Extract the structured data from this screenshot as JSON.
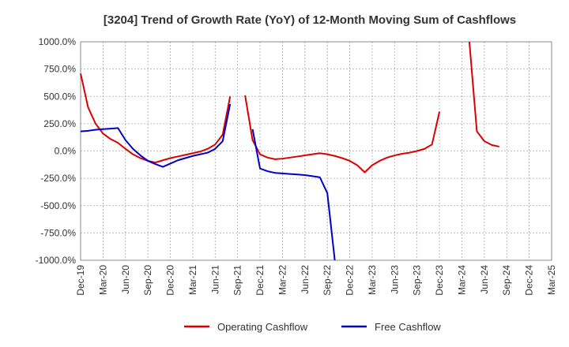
{
  "chart_data": {
    "type": "line",
    "title": "[3204]  Trend of Growth Rate (YoY) of 12-Month Moving Sum of Cashflows",
    "xlabel": "",
    "ylabel": "",
    "x_labels": [
      "Dec-19",
      "Mar-20",
      "Jun-20",
      "Sep-20",
      "Dec-20",
      "Mar-21",
      "Jun-21",
      "Sep-21",
      "Dec-21",
      "Mar-22",
      "Jun-22",
      "Sep-22",
      "Dec-22",
      "Mar-23",
      "Jun-23",
      "Sep-23",
      "Dec-23",
      "Mar-24",
      "Jun-24",
      "Sep-24",
      "Dec-24",
      "Mar-25"
    ],
    "y_ticks": [
      "1000.0%",
      "750.0%",
      "500.0%",
      "250.0%",
      "0.0%",
      "-250.0%",
      "-500.0%",
      "-750.0%",
      "-1000.0%"
    ],
    "ylim": [
      -1000,
      1000
    ],
    "grid": true,
    "legend_position": "bottom",
    "colors": {
      "operating": "#dd0000",
      "free": "#0000cc"
    },
    "series": [
      {
        "name": "Operating Cashflow",
        "color": "#dd0000",
        "segments": [
          [
            [
              0,
              710
            ],
            [
              1,
              400
            ],
            [
              2,
              250
            ],
            [
              3,
              160
            ],
            [
              4,
              110
            ],
            [
              5,
              75
            ],
            [
              6,
              20
            ],
            [
              7,
              -30
            ],
            [
              8,
              -65
            ],
            [
              9,
              -90
            ],
            [
              10,
              -105
            ],
            [
              11,
              -85
            ],
            [
              12,
              -65
            ],
            [
              13,
              -50
            ],
            [
              14,
              -35
            ],
            [
              15,
              -20
            ],
            [
              16,
              -5
            ],
            [
              17,
              20
            ],
            [
              18,
              60
            ],
            [
              19,
              150
            ],
            [
              20,
              500
            ]
          ],
          [
            [
              22,
              510
            ],
            [
              23,
              100
            ],
            [
              24,
              -30
            ],
            [
              25,
              -60
            ],
            [
              26,
              -75
            ],
            [
              27,
              -70
            ],
            [
              28,
              -60
            ],
            [
              29,
              -50
            ],
            [
              30,
              -40
            ],
            [
              31,
              -30
            ],
            [
              32,
              -20
            ],
            [
              33,
              -30
            ],
            [
              34,
              -45
            ],
            [
              35,
              -65
            ],
            [
              36,
              -90
            ],
            [
              37,
              -130
            ],
            [
              38,
              -195
            ],
            [
              39,
              -130
            ],
            [
              40,
              -90
            ],
            [
              41,
              -60
            ],
            [
              42,
              -40
            ],
            [
              43,
              -25
            ],
            [
              44,
              -15
            ],
            [
              45,
              0
            ],
            [
              46,
              20
            ],
            [
              47,
              60
            ],
            [
              48,
              360
            ]
          ],
          [
            [
              52,
              1000
            ],
            [
              53,
              180
            ],
            [
              54,
              90
            ],
            [
              55,
              55
            ],
            [
              56,
              40
            ]
          ]
        ]
      },
      {
        "name": "Free Cashflow",
        "color": "#0000cc",
        "segments": [
          [
            [
              0,
              180
            ],
            [
              1,
              185
            ],
            [
              2,
              195
            ],
            [
              3,
              200
            ],
            [
              4,
              205
            ],
            [
              5,
              210
            ],
            [
              6,
              100
            ],
            [
              7,
              20
            ],
            [
              8,
              -40
            ],
            [
              9,
              -90
            ],
            [
              10,
              -120
            ],
            [
              11,
              -145
            ],
            [
              12,
              -115
            ],
            [
              13,
              -85
            ],
            [
              14,
              -65
            ],
            [
              15,
              -45
            ],
            [
              16,
              -30
            ],
            [
              17,
              -15
            ],
            [
              18,
              20
            ],
            [
              19,
              90
            ],
            [
              20,
              430
            ]
          ],
          [
            [
              23,
              200
            ],
            [
              24,
              -160
            ],
            [
              25,
              -185
            ],
            [
              26,
              -200
            ],
            [
              27,
              -205
            ],
            [
              28,
              -210
            ],
            [
              29,
              -215
            ],
            [
              30,
              -220
            ],
            [
              31,
              -230
            ],
            [
              32,
              -240
            ],
            [
              33,
              -385
            ],
            [
              34,
              -1000
            ]
          ]
        ]
      }
    ]
  }
}
